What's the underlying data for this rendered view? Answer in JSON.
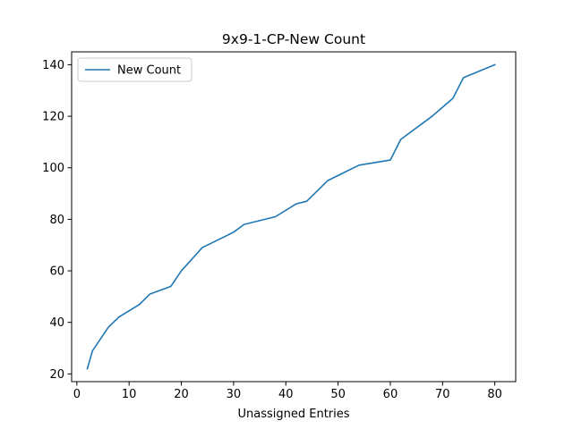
{
  "chart_data": {
    "type": "line",
    "title": "9x9-1-CP-New Count",
    "xlabel": "Unassigned Entries",
    "ylabel": "",
    "xlim": [
      -1,
      84
    ],
    "ylim": [
      17,
      145
    ],
    "x_ticks": [
      0,
      10,
      20,
      30,
      40,
      50,
      60,
      70,
      80
    ],
    "y_ticks": [
      20,
      40,
      60,
      80,
      100,
      120,
      140
    ],
    "grid": false,
    "legend": {
      "placement": "upper-left",
      "entries": [
        "New Count"
      ]
    },
    "series": [
      {
        "name": "New Count",
        "color": "#1f77b4",
        "x": [
          2,
          3,
          6,
          8,
          12,
          14,
          18,
          20,
          24,
          30,
          32,
          38,
          42,
          44,
          48,
          54,
          60,
          62,
          68,
          72,
          74,
          80
        ],
        "y": [
          22,
          29,
          38,
          42,
          47,
          51,
          54,
          60,
          69,
          75,
          78,
          81,
          86,
          87,
          95,
          101,
          103,
          111,
          120,
          127,
          135,
          140
        ]
      }
    ]
  }
}
